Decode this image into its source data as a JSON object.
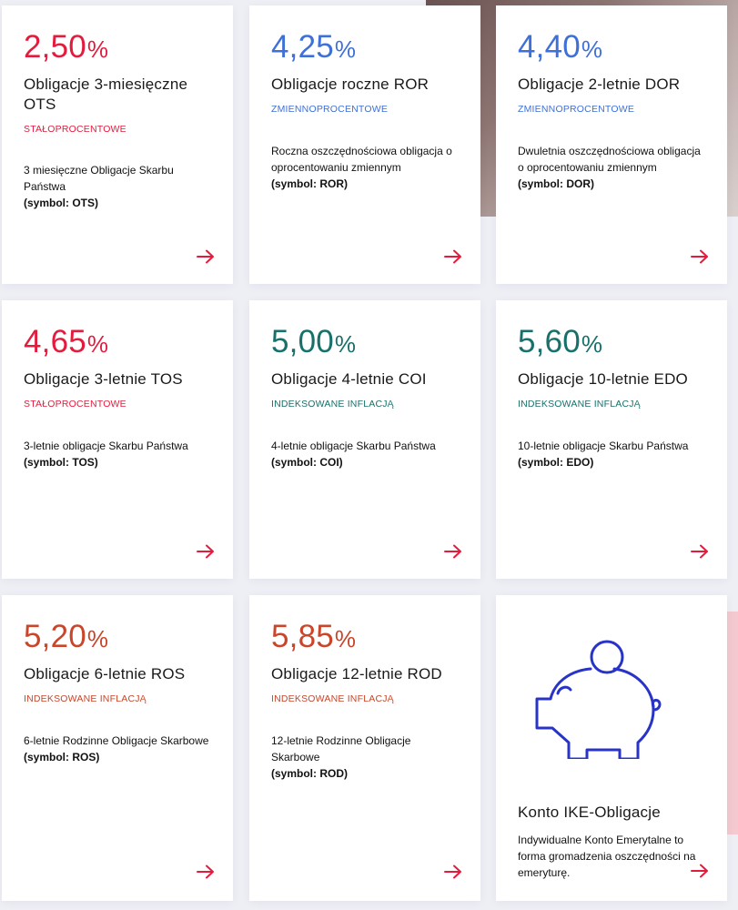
{
  "colors": {
    "red": "#e31c3d",
    "blue": "#3f70d8",
    "green": "#17706a",
    "orange": "#c9462a",
    "piggy": "#2833c7"
  },
  "cards": [
    {
      "rate": "2,50",
      "pct": "%",
      "title": "Obligacje 3-miesięczne OTS",
      "tag": "STAŁOPROCENTOWE",
      "desc": "3 miesięczne Obligacje Skarbu Państwa",
      "symbol": "(symbol: OTS)"
    },
    {
      "rate": "4,25",
      "pct": "%",
      "title": "Obligacje roczne ROR",
      "tag": "ZMIENNOPROCENTOWE",
      "desc": "Roczna oszczędnościowa obligacja o oprocentowaniu zmiennym",
      "symbol": "(symbol: ROR)"
    },
    {
      "rate": "4,40",
      "pct": "%",
      "title": "Obligacje 2-letnie DOR",
      "tag": "ZMIENNOPROCENTOWE",
      "desc": "Dwuletnia oszczędnościowa obligacja o oprocentowaniu zmiennym",
      "symbol": "(symbol: DOR)"
    },
    {
      "rate": "4,65",
      "pct": "%",
      "title": "Obligacje 3-letnie TOS",
      "tag": "STAŁOPROCENTOWE",
      "desc": "3-letnie obligacje Skarbu Państwa",
      "symbol": "(symbol: TOS)"
    },
    {
      "rate": "5,00",
      "pct": "%",
      "title": "Obligacje 4-letnie COI",
      "tag": "INDEKSOWANE INFLACJĄ",
      "desc": "4-letnie obligacje Skarbu Państwa",
      "symbol": "(symbol: COI)"
    },
    {
      "rate": "5,60",
      "pct": "%",
      "title": "Obligacje 10-letnie EDO",
      "tag": "INDEKSOWANE INFLACJĄ",
      "desc": "10-letnie obligacje Skarbu Państwa",
      "symbol": "(symbol: EDO)"
    },
    {
      "rate": "5,20",
      "pct": "%",
      "title": "Obligacje 6-letnie ROS",
      "tag": "INDEKSOWANE INFLACJĄ",
      "desc": "6-letnie Rodzinne Obligacje Skarbowe",
      "symbol": "(symbol: ROS)"
    },
    {
      "rate": "5,85",
      "pct": "%",
      "title": "Obligacje 12-letnie ROD",
      "tag": "INDEKSOWANE INFLACJĄ",
      "desc": "12-letnie Rodzinne Obligacje Skarbowe",
      "symbol": "(symbol: ROD)"
    },
    {
      "title": "Konto IKE-Obligacje",
      "desc": "Indywidualne Konto Emerytalne to forma gromadzenia oszczędności na emeryturę.",
      "icon": "piggy-bank-icon"
    }
  ]
}
